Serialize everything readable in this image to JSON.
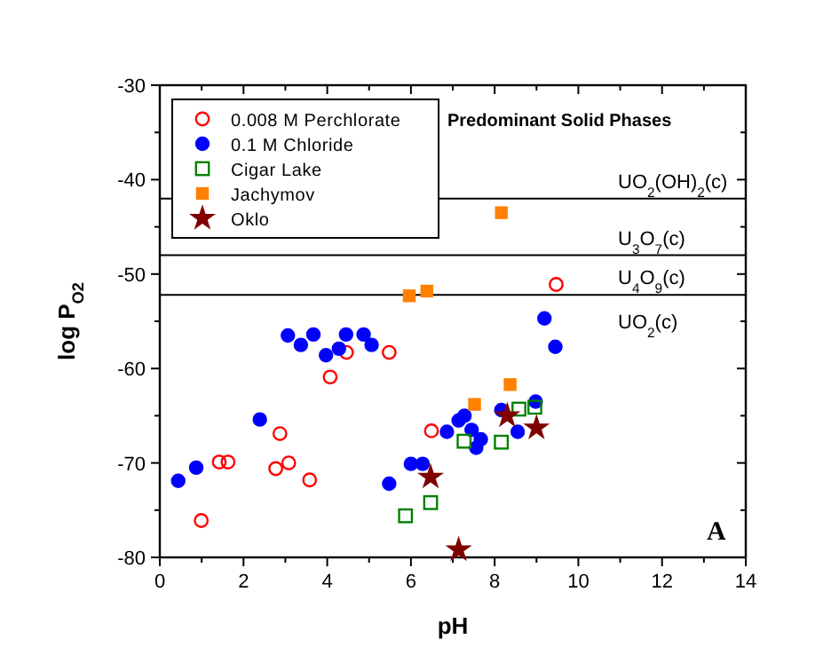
{
  "chart_data": {
    "type": "scatter",
    "xlabel": "pH",
    "ylabel": "log P$_{O2}$",
    "xlim": [
      0,
      14
    ],
    "ylim": [
      -80,
      -30
    ],
    "xticks": [
      0,
      2,
      4,
      6,
      8,
      10,
      12,
      14
    ],
    "yticks": [
      -80,
      -70,
      -60,
      -50,
      -40,
      -30
    ],
    "grid": false,
    "legend": "top left",
    "series": [
      {
        "name": "0.008 M Perchlorate",
        "color": "#ff0000",
        "marker": "circle-open",
        "x": [
          0.99,
          1.42,
          1.63,
          2.77,
          2.87,
          3.08,
          3.58,
          4.07,
          4.46,
          5.48,
          6.49,
          9.47
        ],
        "values": [
          -76.1,
          -69.9,
          -69.9,
          -70.6,
          -66.9,
          -70.0,
          -71.8,
          -60.9,
          -58.3,
          -58.3,
          -66.6,
          -51.1
        ]
      },
      {
        "name": "0.1 M Chloride",
        "color": "#0000ff",
        "marker": "circle",
        "x": [
          0.44,
          0.87,
          2.39,
          3.06,
          3.37,
          3.67,
          3.97,
          4.28,
          4.45,
          4.87,
          5.06,
          5.48,
          6.0,
          6.28,
          6.86,
          7.14,
          7.28,
          7.45,
          7.56,
          7.67,
          8.16,
          8.55,
          8.98,
          9.19,
          9.45
        ],
        "values": [
          -71.9,
          -70.5,
          -65.4,
          -56.5,
          -57.5,
          -56.4,
          -58.6,
          -57.9,
          -56.4,
          -56.4,
          -57.5,
          -72.2,
          -70.1,
          -70.1,
          -66.7,
          -65.5,
          -65.0,
          -66.5,
          -68.4,
          -67.5,
          -64.4,
          -66.7,
          -63.5,
          -54.7,
          -57.7
        ]
      },
      {
        "name": "Cigar Lake",
        "color": "#008000",
        "marker": "square-open",
        "x": [
          5.87,
          6.47,
          7.27,
          8.16,
          8.58,
          8.96
        ],
        "values": [
          -75.6,
          -74.2,
          -67.7,
          -67.8,
          -64.3,
          -64.1
        ]
      },
      {
        "name": "Jachymov",
        "color": "#ff8000",
        "marker": "square",
        "x": [
          5.96,
          6.38,
          8.16,
          7.52,
          8.37
        ],
        "values": [
          -52.3,
          -51.8,
          -43.5,
          -63.8,
          -61.7
        ]
      },
      {
        "name": "Oklo",
        "color": "#800000",
        "marker": "star",
        "x": [
          8.3,
          9.0,
          6.47,
          7.14
        ],
        "values": [
          -65.0,
          -66.3,
          -71.5,
          -79.2
        ]
      }
    ],
    "ref_lines": [
      {
        "axis": "y",
        "value": -42,
        "label": "UO$_{2}$(OH)$_{2}$(c)",
        "color": "#000000"
      },
      {
        "axis": "y",
        "value": -48,
        "label": "U$_{3}$O$_{7}$(c)",
        "color": "#000000"
      },
      {
        "axis": "y",
        "value": -52.2,
        "label": "U$_{4}$O$_{9}$(c)",
        "color": "#000000"
      }
    ],
    "annotations": [
      "Predominant Solid Phases",
      "UO$_{2}$(c)",
      "A"
    ]
  }
}
